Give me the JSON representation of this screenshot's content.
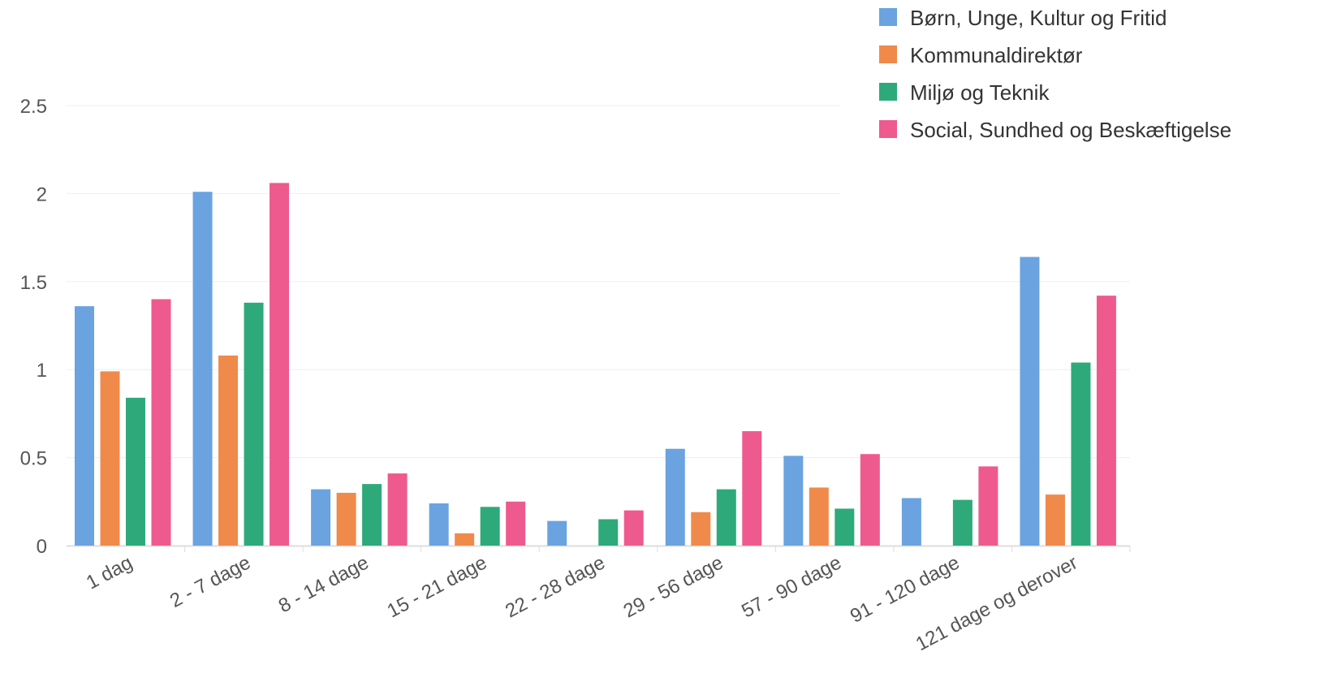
{
  "chart_data": {
    "type": "bar",
    "title": "",
    "xlabel": "",
    "ylabel": "",
    "ylim": [
      0,
      2.5
    ],
    "yticks": [
      "0",
      "0.5",
      "1",
      "1.5",
      "2",
      "2.5"
    ],
    "grid": true,
    "legend_position": "top-right",
    "categories": [
      "1 dag",
      "2 - 7 dage",
      "8 - 14 dage",
      "15 - 21 dage",
      "22 - 28 dage",
      "29 - 56 dage",
      "57 - 90 dage",
      "91 - 120 dage",
      "121 dage og derover"
    ],
    "series": [
      {
        "name": "Børn, Unge, Kultur og Fritid",
        "color": "#6aa3e0",
        "values": [
          1.36,
          2.01,
          0.32,
          0.24,
          0.14,
          0.55,
          0.51,
          0.27,
          1.64
        ]
      },
      {
        "name": "Kommunaldirektør",
        "color": "#f08a4b",
        "values": [
          0.99,
          1.08,
          0.3,
          0.07,
          0,
          0.19,
          0.33,
          0,
          0.29
        ]
      },
      {
        "name": "Miljø og Teknik",
        "color": "#2eaa7a",
        "values": [
          0.84,
          1.38,
          0.35,
          0.22,
          0.15,
          0.32,
          0.21,
          0.26,
          1.04
        ]
      },
      {
        "name": "Social, Sundhed og Beskæftigelse",
        "color": "#ee5a8d",
        "values": [
          1.4,
          2.06,
          0.41,
          0.25,
          0.2,
          0.65,
          0.52,
          0.45,
          1.42
        ]
      }
    ]
  }
}
